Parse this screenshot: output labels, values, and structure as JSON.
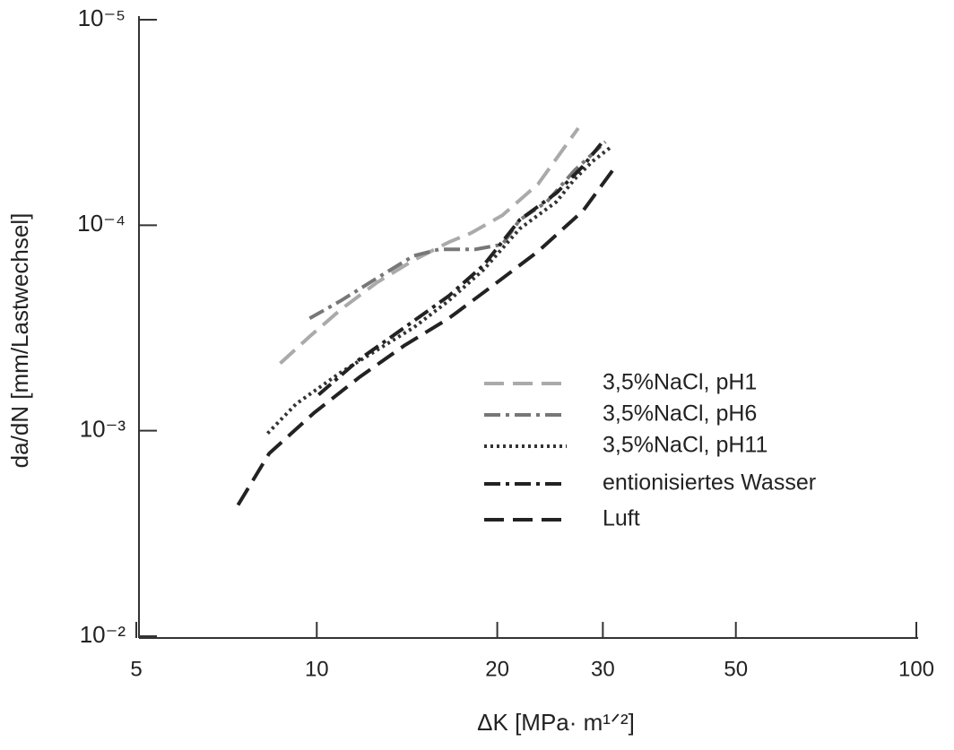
{
  "chart_data": {
    "type": "line",
    "xlabel": "ΔK [MPa· m¹ᐟ²]",
    "ylabel": "da/dN [mm/Lastwechsel]",
    "xscale": "log",
    "yscale": "log",
    "xlim": [
      5,
      100
    ],
    "ylim": [
      0.01,
      1e-05
    ],
    "xticks": [
      5,
      10,
      20,
      30,
      50,
      100
    ],
    "yticks": [
      {
        "value": 1e-05,
        "label": "10⁻⁵"
      },
      {
        "value": 0.0001,
        "label": "10⁻⁴"
      },
      {
        "value": 0.001,
        "label": "10⁻³"
      },
      {
        "value": 0.01,
        "label": "10⁻²"
      }
    ],
    "legend": "lower right",
    "series": [
      {
        "name": "3,5%NaCl, pH1",
        "color": "#aaaaaa",
        "linestyle": "dashed",
        "x": [
          8.69,
          9.73,
          10.97,
          12.6,
          14.5,
          16.6,
          18.1,
          20.4,
          23.4,
          27.3
        ],
        "values": [
          0.00047,
          0.000348,
          0.000257,
          0.00019,
          0.000148,
          0.000121,
          0.000109,
          8.95e-05,
          6.3e-05,
          3.37e-05
        ]
      },
      {
        "name": "3,5%NaCl, pH6",
        "color": "#777777",
        "linestyle": "dashdot",
        "x": [
          9.73,
          10.97,
          12.6,
          14.5,
          16.0,
          18.4,
          20.4,
          21.8,
          24.2,
          26.9,
          30.3
        ],
        "values": [
          0.000284,
          0.000233,
          0.000181,
          0.000141,
          0.000131,
          0.000131,
          0.000124,
          9.42e-05,
          7.69e-05,
          5.42e-05,
          3.93e-05
        ]
      },
      {
        "name": "3,5%NaCl, pH11",
        "color": "#333333",
        "linestyle": "dotted",
        "x": [
          8.28,
          9.24,
          10.97,
          12.6,
          14.5,
          16.6,
          19.0,
          21.8,
          25.1,
          26.9,
          28.8,
          30.8
        ],
        "values": [
          0.00103,
          0.00074,
          0.00052,
          0.000405,
          0.000315,
          0.000233,
          0.000164,
          0.000104,
          7.69e-05,
          5.98e-05,
          4.9e-05,
          4.21e-05
        ]
      },
      {
        "name": "entionisiertes Wasser",
        "color": "#222222",
        "linestyle": "dashdot",
        "x": [
          10.07,
          11.8,
          14.0,
          16.6,
          19.0,
          21.8,
          25.1,
          27.8,
          29.8
        ],
        "values": [
          0.000668,
          0.000448,
          0.000315,
          0.000221,
          0.000156,
          9.42e-05,
          6.97e-05,
          5.16e-05,
          4.01e-05
        ]
      },
      {
        "name": "Luft",
        "color": "#222222",
        "linestyle": "dashed",
        "x": [
          7.39,
          8.33,
          9.9,
          11.8,
          14.0,
          16.6,
          19.7,
          23.4,
          27.8,
          31.7
        ],
        "values": [
          0.0023,
          0.00129,
          0.000818,
          0.000547,
          0.000385,
          0.000284,
          0.000196,
          0.000134,
          8.51e-05,
          5.05e-05
        ]
      }
    ]
  }
}
